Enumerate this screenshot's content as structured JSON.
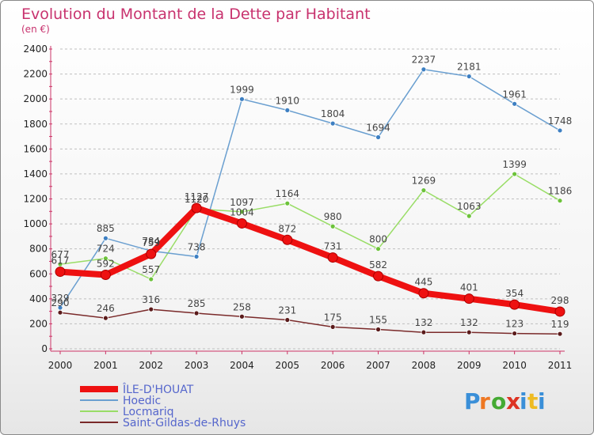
{
  "header": {
    "title": "Evolution du Montant de la Dette par Habitant",
    "subtitle": "(en €)"
  },
  "logo": {
    "text": "Proxiti"
  },
  "colors": {
    "title": "#c8326e",
    "axis": "#cc3366",
    "grid": "#bfbfbf",
    "legend_text": "#5566cc"
  },
  "chart_data": {
    "type": "line",
    "title": "Evolution du Montant de la Dette par Habitant",
    "subtitle": "(en €)",
    "xlabel": "",
    "ylabel": "",
    "categories": [
      "2000",
      "2001",
      "2002",
      "2003",
      "2004",
      "2005",
      "2006",
      "2007",
      "2008",
      "2009",
      "2010",
      "2011"
    ],
    "ylim": [
      0,
      2400
    ],
    "yticks": [
      0,
      200,
      400,
      600,
      800,
      1000,
      1200,
      1400,
      1600,
      1800,
      2000,
      2200,
      2400
    ],
    "grid": "horizontal dashed",
    "legend_position": "bottom-left",
    "series": [
      {
        "name": "Saint-Gildas-de-Rhuys",
        "color": "#7a2a2a",
        "marker": "#5a1a1a",
        "width": 1.5,
        "values": [
          290,
          246,
          316,
          285,
          258,
          231,
          175,
          155,
          132,
          132,
          123,
          119
        ]
      },
      {
        "name": "Locmariq",
        "color": "#99dd66",
        "marker": "#6cc23a",
        "width": 1.5,
        "values": [
          677,
          724,
          557,
          1120,
          1097,
          1164,
          980,
          800,
          1269,
          1063,
          1399,
          1186
        ]
      },
      {
        "name": "Hoedic",
        "color": "#6a9fd0",
        "marker": "#3d7fc2",
        "width": 1.5,
        "values": [
          329,
          885,
          784,
          738,
          1999,
          1910,
          1804,
          1694,
          2237,
          2181,
          1961,
          1748
        ]
      },
      {
        "name": "ÎLE-D'HOUAT",
        "color": "#ee1111",
        "marker": "#ee1111",
        "width": 8,
        "values": [
          617,
          592,
          759,
          1127,
          1004,
          872,
          731,
          582,
          445,
          401,
          354,
          298
        ]
      }
    ]
  }
}
